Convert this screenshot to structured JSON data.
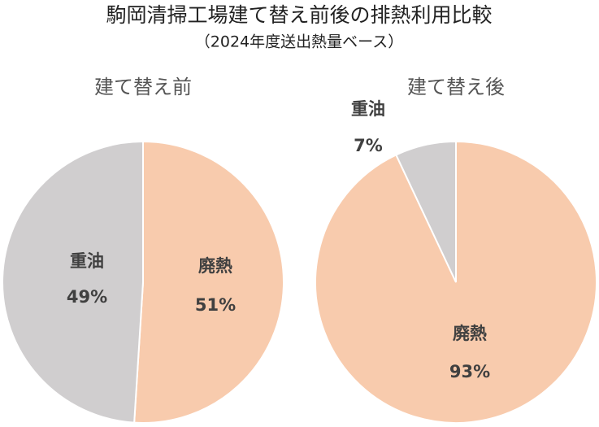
{
  "title": "駒岡清掃工場建て替え前後の排熱利用比較",
  "subtitle": "（2024年度送出熱量ベース）",
  "chart_data": [
    {
      "type": "pie",
      "title": "建て替え前",
      "categories": [
        "廃熱",
        "重油"
      ],
      "values": [
        51,
        49
      ],
      "value_labels": [
        "51%",
        "49%"
      ],
      "colors": [
        "#f8cbad",
        "#d0cecf"
      ]
    },
    {
      "type": "pie",
      "title": "建て替え後",
      "categories": [
        "廃熱",
        "重油"
      ],
      "values": [
        93,
        7
      ],
      "value_labels": [
        "93%",
        "7%"
      ],
      "colors": [
        "#f8cbad",
        "#d0cecf"
      ]
    }
  ]
}
